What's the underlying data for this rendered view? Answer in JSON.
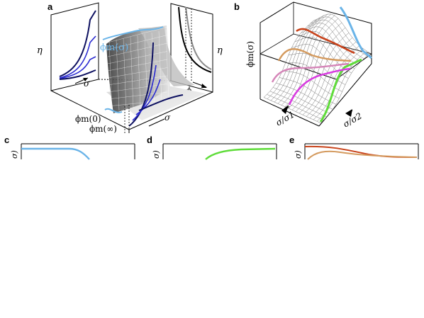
{
  "panels": {
    "a": {
      "letter": "a",
      "curve_label": "ϕm(σ)",
      "eta_left": "η",
      "eta_right": "η",
      "sigma_left": "σ",
      "sigma_front": "σ",
      "phi_right": "ϕ",
      "phi0": "ϕm(0)",
      "phiinf": "ϕm(∞)"
    },
    "b": {
      "letter": "b",
      "z_label": "ϕm(σ)",
      "x_label": "σ/σ1",
      "y_label": "σ/σ2"
    },
    "c": {
      "letter": "c",
      "axis_fragment": "σ)"
    },
    "d": {
      "letter": "d",
      "axis_fragment": "σ)"
    },
    "e": {
      "letter": "e",
      "axis_fragment": "σ)"
    }
  },
  "colors": {
    "light_blue": "#6ab4e8",
    "green": "#5fdc3a",
    "red": "#c8421a",
    "orange": "#d49a5e",
    "pink": "#d585b8",
    "magenta": "#d83ce0",
    "navy": "#0d1060",
    "blue": "#2a2ad0"
  }
}
